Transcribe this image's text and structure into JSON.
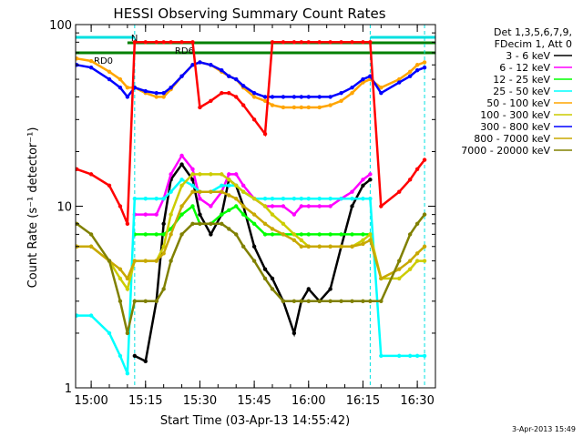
{
  "chart_data": {
    "type": "line",
    "title": "HESSI Observing Summary Count Rates",
    "xlabel": "Start Time (03-Apr-13 14:55:42)",
    "ylabel": "Count Rate (s⁻¹ detector⁻¹)",
    "x_unit": "minutes",
    "xlim": [
      "14:55:42",
      "16:35:00"
    ],
    "x_ticks": [
      "15:00",
      "15:15",
      "15:30",
      "15:45",
      "16:00",
      "16:15",
      "16:30"
    ],
    "y_scale": "log",
    "ylim": [
      1,
      100
    ],
    "y_ticks": [
      "1",
      "10",
      "100"
    ],
    "legend_header": [
      "Det 1,3,5,6,7,9,",
      "FDecim 1, Att 0"
    ],
    "legend_position": "right",
    "timestamp": "3-Apr-2013 15:49",
    "flags": [
      {
        "label": "RD0",
        "color": "#008000",
        "start": "14:55:42",
        "end": "16:35:00"
      },
      {
        "label": "RD6",
        "color": "#008000",
        "start": "15:10:00",
        "end": "16:35:00"
      },
      {
        "label": "N",
        "color": "#00e0e0",
        "start": "14:55:42",
        "end": "15:12:00"
      },
      {
        "label": "",
        "color": "#00e0e0",
        "start": "16:17:00",
        "end": "16:35:00"
      }
    ],
    "x": [
      "14:56",
      "15:00",
      "15:05",
      "15:08",
      "15:10",
      "15:12",
      "15:15",
      "15:18",
      "15:20",
      "15:22",
      "15:25",
      "15:28",
      "15:30",
      "15:33",
      "15:36",
      "15:38",
      "15:40",
      "15:42",
      "15:45",
      "15:48",
      "15:50",
      "15:53",
      "15:56",
      "15:58",
      "16:00",
      "16:03",
      "16:06",
      "16:09",
      "16:12",
      "16:15",
      "16:17",
      "16:20",
      "16:25",
      "16:28",
      "16:30",
      "16:32"
    ],
    "series": [
      {
        "name": "3 - 6 keV",
        "color": "#000000",
        "values": [
          null,
          null,
          null,
          null,
          null,
          1.5,
          1.4,
          3,
          8,
          14,
          17,
          14,
          9,
          7,
          9,
          14,
          13,
          10,
          6,
          4.5,
          4,
          3,
          2,
          3,
          3.5,
          3,
          3.5,
          6,
          10,
          13,
          14,
          null,
          null,
          null,
          null,
          null
        ]
      },
      {
        "name": "6 - 12 keV",
        "color": "#ff00ff",
        "values": [
          null,
          null,
          null,
          null,
          null,
          9,
          9,
          9,
          11,
          15,
          19,
          16,
          11,
          10,
          12,
          15,
          15,
          13,
          11,
          10,
          10,
          10,
          9,
          10,
          10,
          10,
          10,
          11,
          12,
          14,
          15,
          null,
          null,
          null,
          null,
          null
        ]
      },
      {
        "name": "12 - 25 keV",
        "color": "#00ff00",
        "values": [
          null,
          null,
          null,
          null,
          null,
          7,
          7,
          7,
          7,
          7.5,
          9,
          10,
          8,
          8,
          9,
          9.5,
          10,
          9,
          8,
          7,
          7,
          7,
          7,
          7,
          7,
          7,
          7,
          7,
          7,
          7,
          7,
          null,
          null,
          null,
          null,
          null
        ]
      },
      {
        "name": "25 - 50 keV",
        "color": "#00ffff",
        "values": [
          2.5,
          2.5,
          2,
          1.5,
          1.2,
          11,
          11,
          11,
          11,
          12,
          14,
          13,
          12,
          12,
          13,
          13,
          13,
          12,
          11,
          11,
          11,
          11,
          11,
          11,
          11,
          11,
          11,
          11,
          11,
          11,
          11,
          1.5,
          1.5,
          1.5,
          1.5,
          1.5
        ]
      },
      {
        "name": "50 - 100 keV",
        "color": "#ffa500",
        "values": [
          65,
          63,
          55,
          50,
          45,
          45,
          42,
          40,
          40,
          44,
          52,
          60,
          62,
          60,
          55,
          52,
          50,
          45,
          40,
          38,
          36,
          35,
          35,
          35,
          35,
          35,
          36,
          38,
          42,
          48,
          50,
          45,
          50,
          55,
          60,
          62
        ]
      },
      {
        "name": "100 - 300 keV",
        "color": "#cccc00",
        "values": [
          6,
          6,
          5,
          4,
          3.5,
          5,
          5,
          5,
          6,
          9,
          13,
          15,
          15,
          15,
          15,
          14,
          13,
          12,
          11,
          10,
          9,
          8,
          7,
          6.5,
          6,
          6,
          6,
          6,
          6,
          6.5,
          7,
          4,
          4,
          4.5,
          5,
          5
        ]
      },
      {
        "name": "300 - 800 keV",
        "color": "#0000ff",
        "values": [
          60,
          58,
          50,
          45,
          40,
          45,
          43,
          42,
          42,
          45,
          52,
          60,
          62,
          60,
          56,
          52,
          50,
          46,
          42,
          40,
          40,
          40,
          40,
          40,
          40,
          40,
          40,
          42,
          45,
          50,
          52,
          42,
          48,
          52,
          56,
          58
        ]
      },
      {
        "name": "800 - 7000 keV",
        "color": "#c8a800",
        "values": [
          6,
          6,
          5,
          4.5,
          4,
          5,
          5,
          5,
          5.5,
          7,
          10,
          12,
          12,
          12,
          12,
          11.5,
          11,
          10,
          9,
          8,
          7.5,
          7,
          6.5,
          6,
          6,
          6,
          6,
          6,
          6,
          6.2,
          6.5,
          4,
          4.5,
          5,
          5.5,
          6
        ]
      },
      {
        "name": "7000 - 20000 keV",
        "color": "#808000",
        "values": [
          8,
          7,
          5,
          3,
          2,
          3,
          3,
          3,
          3.5,
          5,
          7,
          8,
          8,
          8,
          8,
          7.5,
          7,
          6,
          5,
          4,
          3.5,
          3,
          3,
          3,
          3,
          3,
          3,
          3,
          3,
          3,
          3,
          3,
          5,
          7,
          8,
          9
        ]
      },
      {
        "name": "",
        "color": "#ff0000",
        "values": [
          16,
          15,
          13,
          10,
          8,
          80,
          80,
          80,
          80,
          80,
          80,
          80,
          35,
          38,
          42,
          42,
          40,
          36,
          30,
          25,
          80,
          80,
          80,
          80,
          80,
          80,
          80,
          80,
          80,
          80,
          80,
          10,
          12,
          14,
          16,
          18
        ]
      }
    ]
  }
}
